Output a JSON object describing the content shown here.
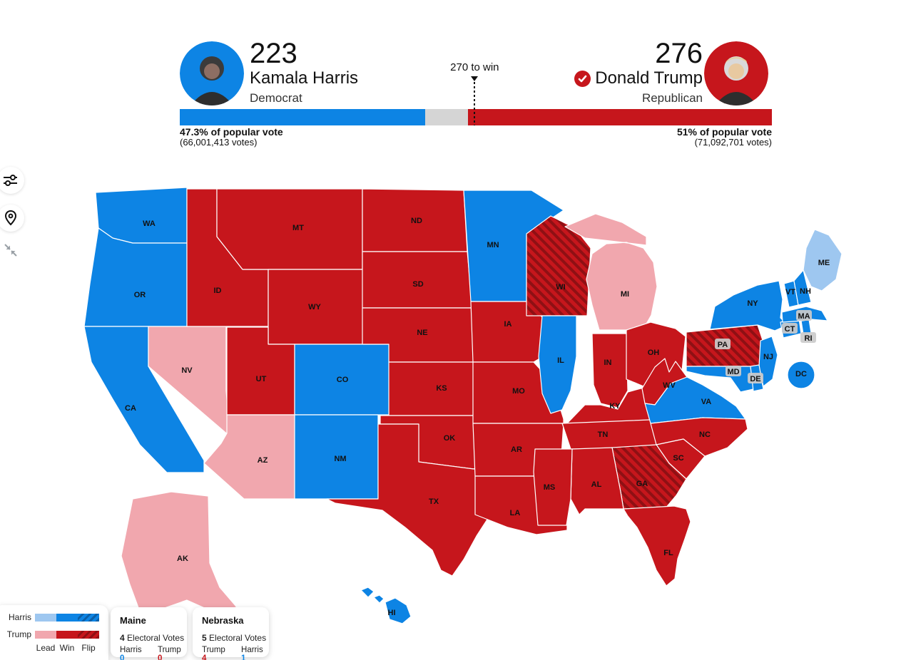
{
  "header": {
    "to_win_label": "270 to win",
    "candidates": [
      {
        "id": "harris",
        "evotes": "223",
        "name": "Kamala Harris",
        "party": "Democrat",
        "pop_pct_label": "47.3% of popular vote",
        "pop_votes_label": "(66,001,413 votes)",
        "winner": false
      },
      {
        "id": "trump",
        "evotes": "276",
        "name": "Donald Trump",
        "party": "Republican",
        "pop_pct_label": "51% of popular vote",
        "pop_votes_label": "(71,092,701 votes)",
        "winner": true
      }
    ]
  },
  "bar": {
    "harris_pct": 41.45,
    "undecided_pct": 7.25,
    "trump_pct": 51.3,
    "marker_pct": 49.8
  },
  "colors": {
    "harris": "#0d84e4",
    "harris_lead": "#9ec7f0",
    "trump": "#c6161c",
    "trump_lead": "#f1a7ae",
    "hatch_dark_red": "#8f1014",
    "hatch_dark_blue": "#0a5fa8",
    "undecided_gray": "#d5d5d5",
    "label_chip_gray": "#cbcbcb"
  },
  "sidebar": {
    "buttons": [
      {
        "icon": "filter-sliders-icon"
      },
      {
        "icon": "location-pin-icon"
      },
      {
        "icon": "collapse-arrows-icon"
      }
    ]
  },
  "legend": {
    "rows": [
      {
        "label": "Harris",
        "lead": "#9ec7f0",
        "win": "#0d84e4",
        "flip": "hatch-blue"
      },
      {
        "label": "Trump",
        "lead": "#f1a7ae",
        "win": "#c6161c",
        "flip": "hatch-red"
      }
    ],
    "categories": [
      "Lead",
      "Win",
      "Flip"
    ]
  },
  "callouts": [
    {
      "title": "Maine",
      "ev_number": "4",
      "ev_text": " Electoral Votes",
      "results": [
        {
          "name": "Harris",
          "value": "0",
          "party": "harris"
        },
        {
          "name": "Trump",
          "value": "0",
          "party": "trump"
        }
      ]
    },
    {
      "title": "Nebraska",
      "ev_number": "5",
      "ev_text": " Electoral Votes",
      "results": [
        {
          "name": "Trump",
          "value": "4",
          "party": "trump"
        },
        {
          "name": "Harris",
          "value": "1",
          "party": "harris"
        }
      ]
    }
  ],
  "map": {
    "states": [
      {
        "id": "WA",
        "label": "WA",
        "status": "harris-win"
      },
      {
        "id": "OR",
        "label": "OR",
        "status": "harris-win"
      },
      {
        "id": "CA",
        "label": "CA",
        "status": "harris-win"
      },
      {
        "id": "NV",
        "label": "NV",
        "status": "trump-lead"
      },
      {
        "id": "ID",
        "label": "ID",
        "status": "trump-win"
      },
      {
        "id": "MT",
        "label": "MT",
        "status": "trump-win"
      },
      {
        "id": "WY",
        "label": "WY",
        "status": "trump-win"
      },
      {
        "id": "UT",
        "label": "UT",
        "status": "trump-win"
      },
      {
        "id": "CO",
        "label": "CO",
        "status": "harris-win"
      },
      {
        "id": "AZ",
        "label": "AZ",
        "status": "trump-lead"
      },
      {
        "id": "NM",
        "label": "NM",
        "status": "harris-win"
      },
      {
        "id": "ND",
        "label": "ND",
        "status": "trump-win"
      },
      {
        "id": "SD",
        "label": "SD",
        "status": "trump-win"
      },
      {
        "id": "NE",
        "label": "NE",
        "status": "trump-win"
      },
      {
        "id": "KS",
        "label": "KS",
        "status": "trump-win"
      },
      {
        "id": "OK",
        "label": "OK",
        "status": "trump-win"
      },
      {
        "id": "TX",
        "label": "TX",
        "status": "trump-win"
      },
      {
        "id": "MN",
        "label": "MN",
        "status": "harris-win"
      },
      {
        "id": "IA",
        "label": "IA",
        "status": "trump-win"
      },
      {
        "id": "MO",
        "label": "MO",
        "status": "trump-win"
      },
      {
        "id": "AR",
        "label": "AR",
        "status": "trump-win"
      },
      {
        "id": "LA",
        "label": "LA",
        "status": "trump-win"
      },
      {
        "id": "WI",
        "label": "WI",
        "status": "trump-flip"
      },
      {
        "id": "IL",
        "label": "IL",
        "status": "harris-win"
      },
      {
        "id": "MI",
        "label": "MI",
        "status": "trump-lead"
      },
      {
        "id": "IN",
        "label": "IN",
        "status": "trump-win"
      },
      {
        "id": "OH",
        "label": "OH",
        "status": "trump-win"
      },
      {
        "id": "KY",
        "label": "KY",
        "status": "trump-win"
      },
      {
        "id": "TN",
        "label": "TN",
        "status": "trump-win"
      },
      {
        "id": "WV",
        "label": "WV",
        "status": "trump-win"
      },
      {
        "id": "VA",
        "label": "VA",
        "status": "harris-win"
      },
      {
        "id": "NC",
        "label": "NC",
        "status": "trump-win"
      },
      {
        "id": "SC",
        "label": "SC",
        "status": "trump-win"
      },
      {
        "id": "GA",
        "label": "GA",
        "status": "trump-flip"
      },
      {
        "id": "AL",
        "label": "AL",
        "status": "trump-win"
      },
      {
        "id": "MS",
        "label": "MS",
        "status": "trump-win"
      },
      {
        "id": "FL",
        "label": "FL",
        "status": "trump-win"
      },
      {
        "id": "PA",
        "label": "PA",
        "status": "trump-flip",
        "chip": true
      },
      {
        "id": "NY",
        "label": "NY",
        "status": "harris-win"
      },
      {
        "id": "NJ",
        "label": "NJ",
        "status": "harris-win"
      },
      {
        "id": "MD",
        "label": "MD",
        "status": "harris-win",
        "chip": true
      },
      {
        "id": "DE",
        "label": "DE",
        "status": "harris-win",
        "chip": true
      },
      {
        "id": "CT",
        "label": "CT",
        "status": "harris-win",
        "chip": true
      },
      {
        "id": "RI",
        "label": "RI",
        "status": "harris-win",
        "chip": true
      },
      {
        "id": "MA",
        "label": "MA",
        "status": "harris-win",
        "chip": true
      },
      {
        "id": "VT",
        "label": "VT",
        "status": "harris-win"
      },
      {
        "id": "NH",
        "label": "NH",
        "status": "harris-win"
      },
      {
        "id": "ME",
        "label": "ME",
        "status": "harris-lead"
      },
      {
        "id": "AK",
        "label": "AK",
        "status": "trump-lead"
      },
      {
        "id": "HI",
        "label": "HI",
        "status": "harris-win"
      },
      {
        "id": "DC",
        "label": "DC",
        "status": "harris-win"
      }
    ]
  }
}
